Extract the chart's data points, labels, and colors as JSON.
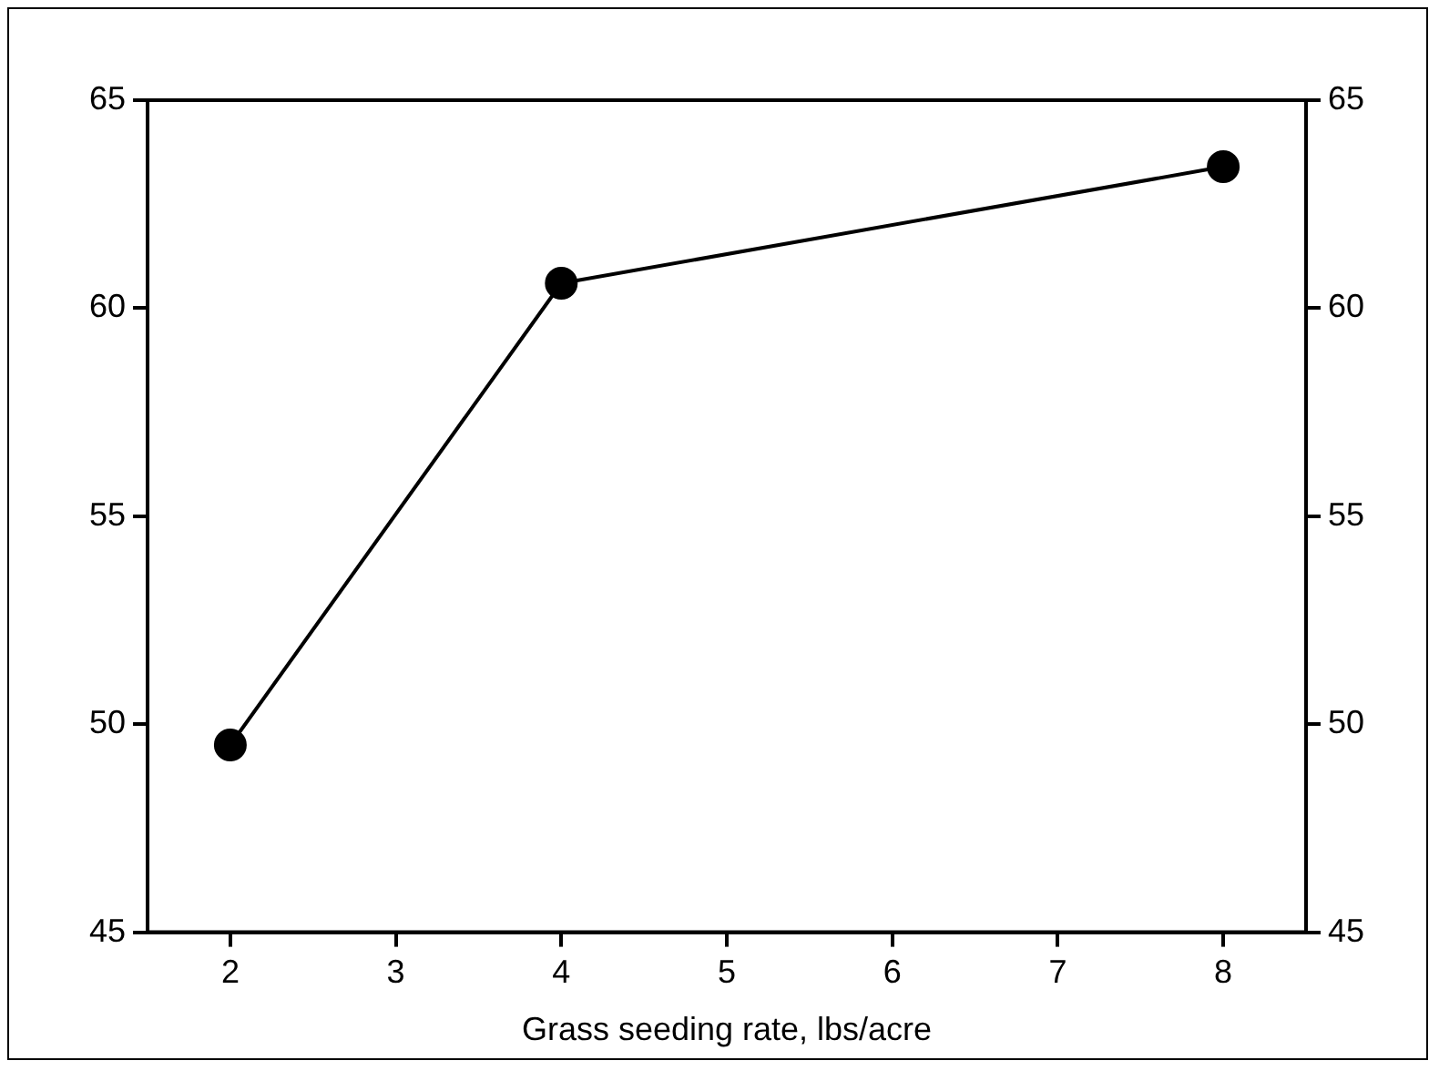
{
  "chart_data": {
    "type": "line",
    "xlabel": "Grass seeding rate, lbs/acre",
    "x": [
      2,
      4,
      8
    ],
    "series": [
      {
        "color": "#000000",
        "values": [
          49.5,
          60.6,
          63.4
        ]
      }
    ],
    "xlim": [
      1.5,
      8.5
    ],
    "xticks": [
      2,
      3,
      4,
      5,
      6,
      7,
      8
    ],
    "ylim": [
      45,
      65
    ],
    "yticks": [
      45,
      50,
      55,
      60,
      65
    ],
    "y2lim": [
      45,
      65
    ],
    "y2ticks": [
      45,
      50,
      55,
      60,
      65
    ],
    "marker": "circle",
    "line_style": "solid",
    "grid": false,
    "legend": false
  }
}
